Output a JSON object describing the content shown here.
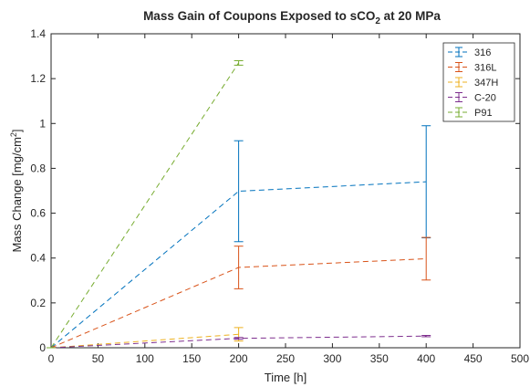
{
  "chart_data": {
    "type": "line",
    "title": "Mass Gain of Coupons Exposed to sCO",
    "title_subscript": "2",
    "title_suffix": " at 20 MPa",
    "xlabel": "Time [h]",
    "ylabel_main": "Mass Change [mg/cm",
    "ylabel_sup": "2",
    "ylabel_end": "]",
    "xlim": [
      0,
      500
    ],
    "ylim": [
      0,
      1.4
    ],
    "xticks": [
      0,
      50,
      100,
      150,
      200,
      250,
      300,
      350,
      400,
      450,
      500
    ],
    "yticks": [
      0,
      0.2,
      0.4,
      0.6,
      0.8,
      1,
      1.2,
      1.4
    ],
    "xtick_labels": [
      "0",
      "50",
      "100",
      "150",
      "200",
      "250",
      "300",
      "350",
      "400",
      "450",
      "500"
    ],
    "ytick_labels": [
      "0",
      "0.2",
      "0.4",
      "0.6",
      "0.8",
      "1",
      "1.2",
      "1.4"
    ],
    "grid": false,
    "legend_position": "top-right",
    "line_style": "dashed",
    "error_bars": true,
    "series": [
      {
        "name": "316",
        "color": "#0072bd",
        "x": [
          0,
          200,
          400
        ],
        "y": [
          0,
          0.698,
          0.74
        ],
        "err_low": [
          0,
          0.225,
          0.25
        ],
        "err_high": [
          0,
          0.225,
          0.25
        ]
      },
      {
        "name": "316L",
        "color": "#d95319",
        "x": [
          0,
          200,
          400
        ],
        "y": [
          0,
          0.358,
          0.397
        ],
        "err_low": [
          0,
          0.095,
          0.095
        ],
        "err_high": [
          0,
          0.095,
          0.095
        ]
      },
      {
        "name": "347H",
        "color": "#edb120",
        "x": [
          0,
          200
        ],
        "y": [
          0,
          0.06
        ],
        "err_low": [
          0,
          0.03
        ],
        "err_high": [
          0,
          0.03
        ]
      },
      {
        "name": "C-20",
        "color": "#7e2f8e",
        "x": [
          0,
          200,
          400
        ],
        "y": [
          0,
          0.042,
          0.052
        ],
        "err_low": [
          0,
          0.004,
          0.003
        ],
        "err_high": [
          0,
          0.004,
          0.003
        ]
      },
      {
        "name": "P91",
        "color": "#77ac30",
        "x": [
          0,
          200
        ],
        "y": [
          0,
          1.27
        ],
        "err_low": [
          0,
          0.01
        ],
        "err_high": [
          0,
          0.01
        ]
      }
    ]
  }
}
